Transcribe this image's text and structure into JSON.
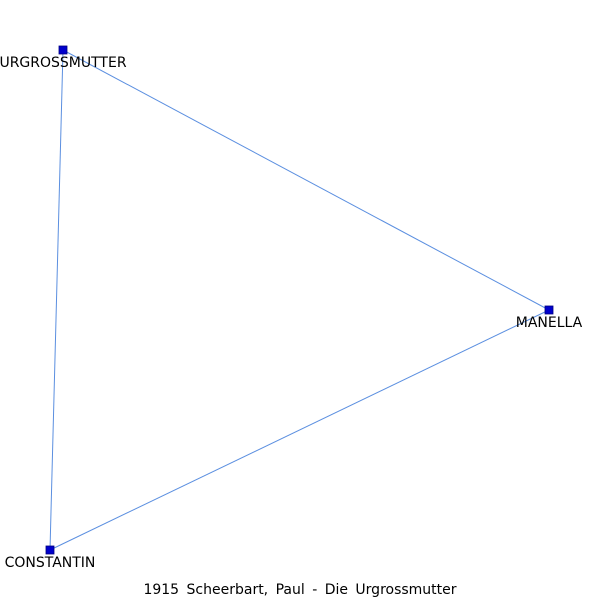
{
  "caption": "1915 Scheerbart, Paul - Die Urgrossmutter",
  "colors": {
    "node_fill": "#0000cc",
    "node_stroke": "#000080",
    "edge": "#5b8fe0"
  },
  "nodes": [
    {
      "id": "urgrossmutter",
      "label": "URGROSSMUTTER"
    },
    {
      "id": "manella",
      "label": "MANELLA"
    },
    {
      "id": "constantin",
      "label": "CONSTANTIN"
    }
  ],
  "edges": [
    {
      "source": "urgrossmutter",
      "target": "manella"
    },
    {
      "source": "urgrossmutter",
      "target": "constantin"
    },
    {
      "source": "manella",
      "target": "constantin"
    }
  ]
}
